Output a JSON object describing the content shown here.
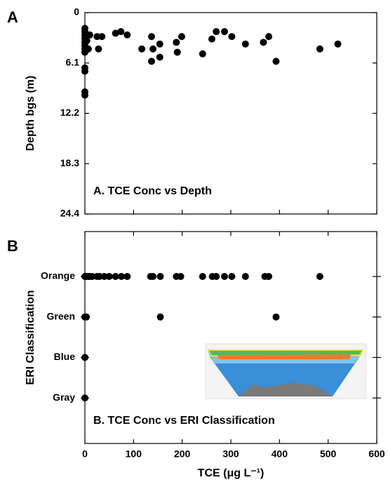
{
  "chart_data": [
    {
      "type": "scatter",
      "panel_label": "A",
      "annotation": "A. TCE Conc vs Depth",
      "y_label": "Depth bgs (m)",
      "ylim": [
        0,
        24.4
      ],
      "yticks": [
        0,
        6.1,
        12.2,
        18.3,
        24.4
      ],
      "y_inverted": true,
      "xlim": [
        0,
        600
      ],
      "color": "#000000",
      "x": [
        0,
        0,
        0,
        0,
        0,
        0,
        0,
        0,
        0,
        0,
        0,
        0,
        4,
        7,
        10,
        25,
        28,
        35,
        87,
        63,
        74,
        117,
        137,
        140,
        137,
        154,
        154,
        188,
        190,
        199,
        242,
        261,
        270,
        287,
        302,
        330,
        367,
        378,
        393,
        483,
        520
      ],
      "y": [
        1.9,
        2.3,
        2.7,
        3.1,
        3.6,
        4.0,
        4.4,
        4.8,
        6.7,
        7.1,
        9.6,
        10.0,
        3.4,
        4.4,
        2.7,
        2.9,
        4.4,
        2.9,
        2.7,
        2.5,
        2.3,
        4.4,
        2.9,
        4.4,
        5.9,
        3.8,
        5.4,
        3.6,
        4.8,
        2.9,
        5.0,
        3.2,
        2.3,
        2.3,
        2.9,
        3.8,
        3.6,
        2.9,
        5.9,
        4.4,
        3.8
      ]
    },
    {
      "type": "strip",
      "panel_label": "B",
      "annotation": "B. TCE Conc vs ERI Classification",
      "y_label": "ERI Classification",
      "x_label": "TCE (μg L⁻¹)",
      "xlim": [
        0,
        600
      ],
      "xticks": [
        0,
        100,
        200,
        300,
        400,
        500,
        600
      ],
      "color": "#000000",
      "categories": [
        "Orange",
        "Green",
        "Blue",
        "Gray"
      ],
      "values": [
        [
          0,
          3,
          7,
          10,
          15,
          25,
          30,
          40,
          50,
          63,
          75,
          87,
          135,
          140,
          155,
          188,
          197,
          242,
          262,
          270,
          287,
          302,
          330,
          370,
          378,
          483
        ],
        [
          0,
          3,
          155,
          393
        ],
        [
          0
        ],
        [
          0
        ]
      ]
    }
  ]
}
